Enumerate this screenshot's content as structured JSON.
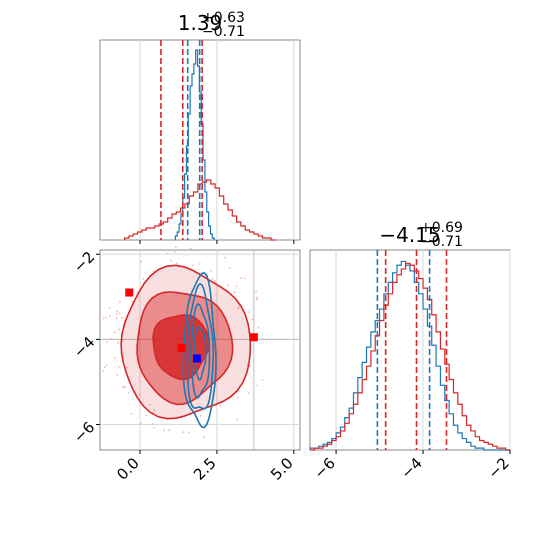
{
  "chart_data": [
    {
      "type": "histogram",
      "panel": "top-left",
      "title": {
        "median": "1.39",
        "plus": "+0.63",
        "minus": "−0.71"
      },
      "xlim": [
        -1.3,
        5.2
      ],
      "grid": true,
      "series": [
        {
          "color": "#d62728",
          "bin_start": -0.5,
          "bin_width": 0.14,
          "heights": [
            0.01,
            0.02,
            0.03,
            0.04,
            0.05,
            0.06,
            0.06,
            0.07,
            0.08,
            0.09,
            0.11,
            0.13,
            0.14,
            0.16,
            0.18,
            0.22,
            0.24,
            0.28,
            0.29,
            0.3,
            0.28,
            0.26,
            0.22,
            0.18,
            0.15,
            0.12,
            0.09,
            0.07,
            0.05,
            0.04,
            0.03,
            0.02,
            0.01,
            0.01,
            0.0
          ]
        },
        {
          "color": "#1f77b4",
          "bin_start": 1.15,
          "bin_width": 0.06,
          "heights": [
            0.02,
            0.04,
            0.08,
            0.13,
            0.21,
            0.33,
            0.47,
            0.63,
            0.77,
            0.83,
            0.88,
            0.95,
            0.87,
            0.74,
            0.58,
            0.4,
            0.24,
            0.14,
            0.07,
            0.03,
            0.01
          ]
        }
      ],
      "quantile_lines": [
        {
          "color": "#d62728",
          "values": [
            0.68,
            1.39,
            2.02
          ]
        },
        {
          "color": "#1f77b4",
          "values": [
            1.55,
            1.94
          ]
        }
      ]
    },
    {
      "type": "contour",
      "panel": "bottom-left",
      "xlim": [
        -1.3,
        5.2
      ],
      "ylim": [
        -6.6,
        -1.9
      ],
      "xticks": [
        0.0,
        2.5,
        5.0
      ],
      "xtick_labels": [
        "0.0",
        "2.5",
        "5.0"
      ],
      "yticks": [
        -2,
        -4,
        -6
      ],
      "ytick_labels": [
        "−2",
        "−4",
        "−6"
      ],
      "grid": true,
      "reference_lines": {
        "x": 3.7,
        "y": -4.0
      },
      "red_contours": [
        {
          "center": [
            1.32,
            -4.15
          ],
          "rx": 0.9,
          "ry": 0.75,
          "fill_opacity": 0.85
        },
        {
          "center": [
            1.4,
            -4.15
          ],
          "rx": 1.55,
          "ry": 1.3,
          "fill_opacity": 0.45
        },
        {
          "center": [
            1.45,
            -4.1
          ],
          "rx": 2.1,
          "ry": 1.75,
          "fill_opacity": 0.15
        }
      ],
      "blue_contours": [
        {
          "center": [
            1.95,
            -4.3
          ],
          "rx": 0.18,
          "ry": 0.6
        },
        {
          "center": [
            1.95,
            -4.3
          ],
          "rx": 0.3,
          "ry": 1.05
        },
        {
          "center": [
            1.95,
            -4.3
          ],
          "rx": 0.42,
          "ry": 1.45
        },
        {
          "center": [
            1.95,
            -4.3
          ],
          "rx": 0.52,
          "ry": 1.75
        }
      ],
      "markers": [
        {
          "x": -0.35,
          "y": -2.9,
          "color": "#ff0000"
        },
        {
          "x": 3.7,
          "y": -3.95,
          "color": "#ff0000"
        },
        {
          "x": 1.35,
          "y": -4.2,
          "color": "#ff0000"
        },
        {
          "x": 1.85,
          "y": -4.45,
          "color": "#0000ff"
        }
      ]
    },
    {
      "type": "histogram",
      "panel": "bottom-right",
      "title": {
        "median": "−4.15",
        "plus": "+0.69",
        "minus": "−0.71"
      },
      "xlim": [
        -6.6,
        -2.0
      ],
      "xticks": [
        -6,
        -4,
        -2
      ],
      "xtick_labels": [
        "−6",
        "−4",
        "−2"
      ],
      "grid": true,
      "series": [
        {
          "color": "#1f77b4",
          "bin_start": -6.6,
          "bin_width": 0.1,
          "heights": [
            0.01,
            0.01,
            0.02,
            0.03,
            0.04,
            0.06,
            0.09,
            0.12,
            0.17,
            0.22,
            0.3,
            0.38,
            0.46,
            0.54,
            0.62,
            0.68,
            0.74,
            0.82,
            0.88,
            0.93,
            0.97,
            0.99,
            0.97,
            0.94,
            0.88,
            0.82,
            0.74,
            0.65,
            0.55,
            0.44,
            0.34,
            0.26,
            0.19,
            0.13,
            0.09,
            0.06,
            0.04,
            0.02,
            0.01,
            0.01,
            0.0,
            0.0,
            0.0,
            0.0,
            0.0,
            0.0
          ]
        },
        {
          "color": "#d62728",
          "bin_start": -6.6,
          "bin_width": 0.1,
          "heights": [
            0.0,
            0.01,
            0.01,
            0.02,
            0.03,
            0.05,
            0.07,
            0.1,
            0.14,
            0.19,
            0.24,
            0.3,
            0.37,
            0.44,
            0.52,
            0.6,
            0.68,
            0.76,
            0.82,
            0.88,
            0.92,
            0.95,
            0.98,
            0.97,
            0.94,
            0.9,
            0.85,
            0.79,
            0.71,
            0.62,
            0.53,
            0.45,
            0.37,
            0.3,
            0.24,
            0.18,
            0.13,
            0.1,
            0.07,
            0.05,
            0.04,
            0.03,
            0.02,
            0.01,
            0.01,
            0.0
          ]
        }
      ],
      "quantile_lines": [
        {
          "color": "#1f77b4",
          "values": [
            -5.05,
            -3.85
          ]
        },
        {
          "color": "#d62728",
          "values": [
            -4.86,
            -4.15,
            -3.46
          ]
        }
      ]
    }
  ]
}
